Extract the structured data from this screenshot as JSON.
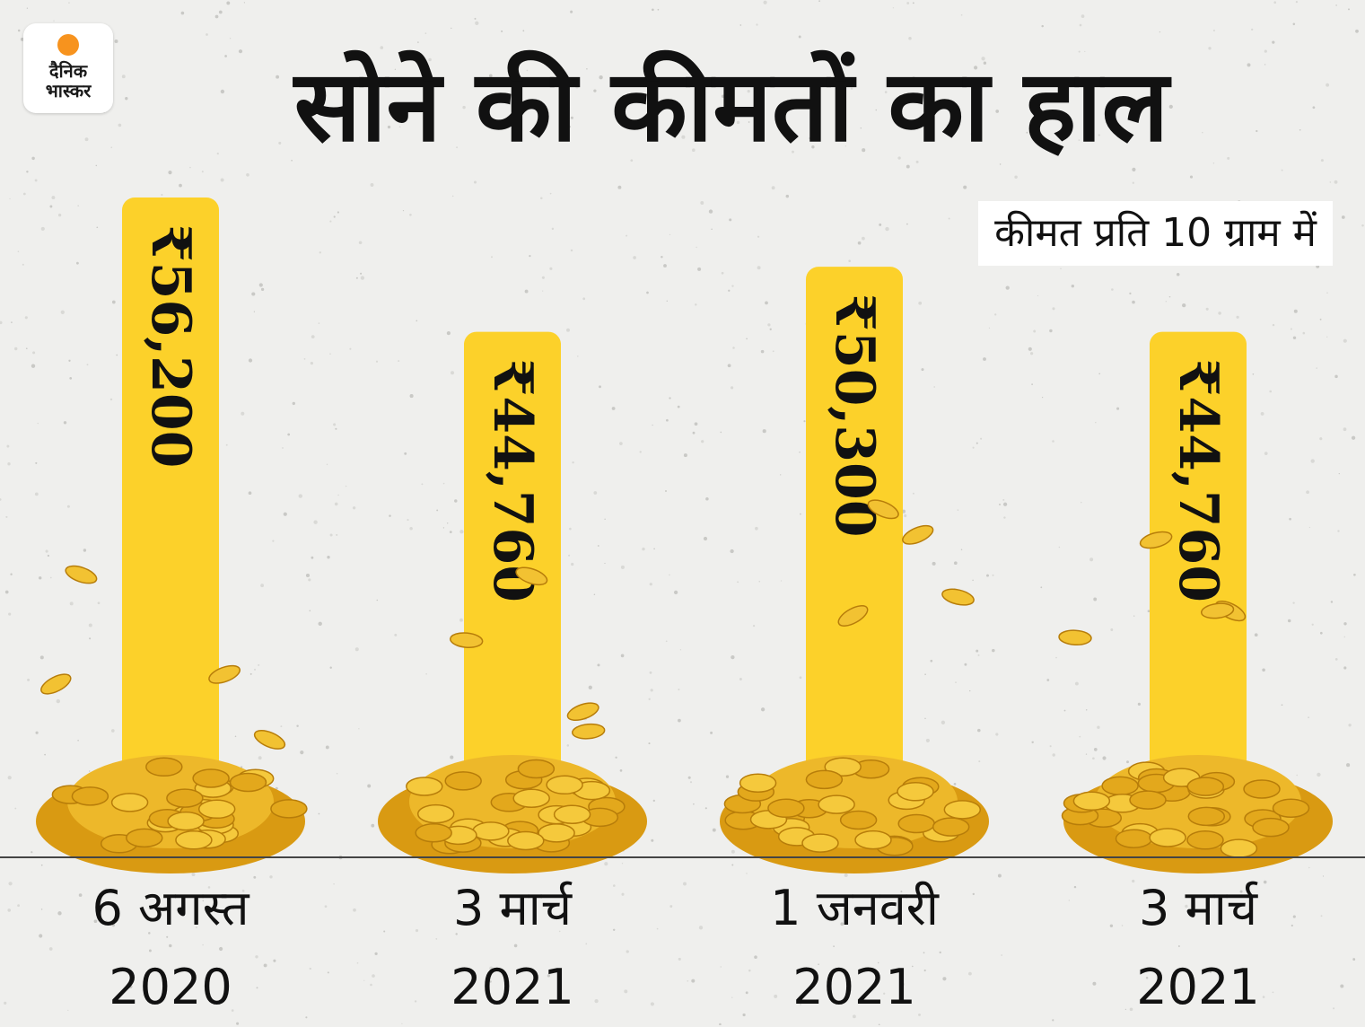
{
  "logo": {
    "text": "दैनिक\nभास्कर",
    "sun_color": "#f7931e"
  },
  "title": "सोने की कीमतों का हाल",
  "unit_note": "कीमत प्रति 10 ग्राम में",
  "chart_data": {
    "type": "bar",
    "title": "सोने की कीमतों का हाल",
    "subtitle": "कीमत प्रति 10 ग्राम में",
    "categories": [
      "6 अगस्त\n2020",
      "3 मार्च\n2021",
      "1 जनवरी\n2021",
      "3 मार्च\n2021"
    ],
    "values": [
      56200,
      44760,
      50300,
      44760
    ],
    "value_labels": [
      "₹56,200",
      "₹44,760",
      "₹50,300",
      "₹44,760"
    ],
    "ylim": [
      0,
      56200
    ],
    "grid": false,
    "legend": "none",
    "bar_color": "#fcd12a"
  }
}
